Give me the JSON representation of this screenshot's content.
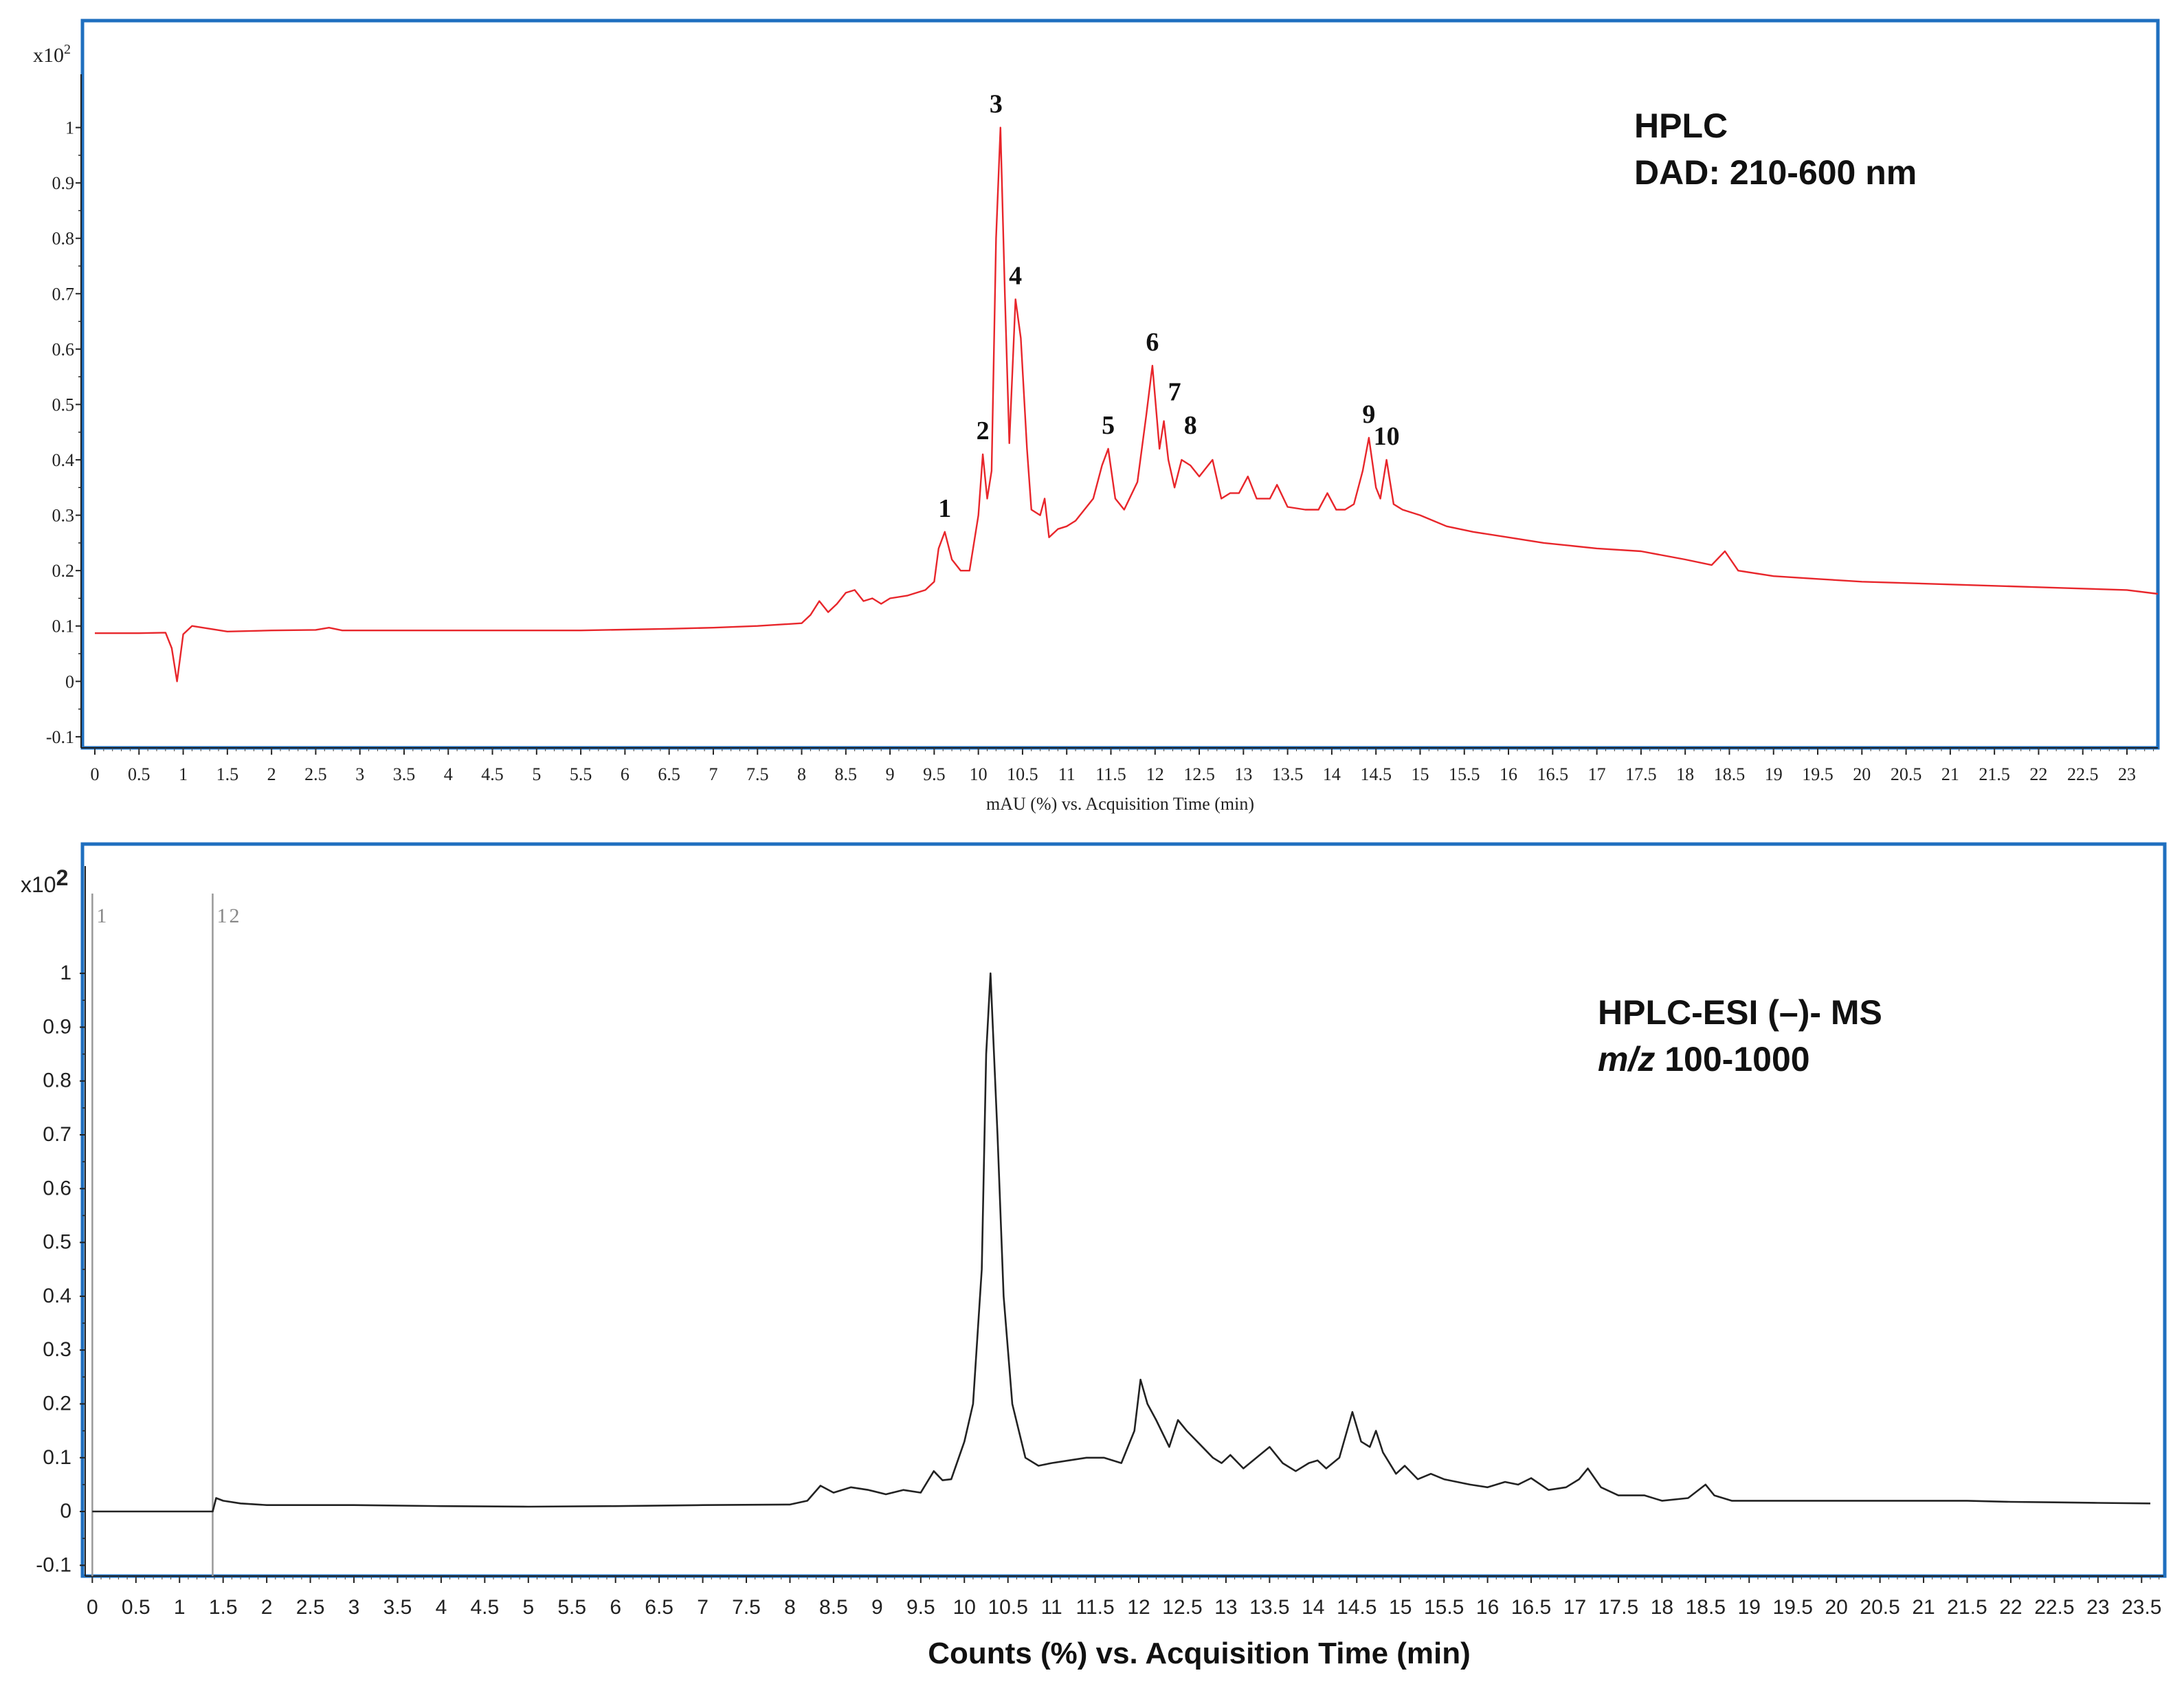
{
  "chart_data": [
    {
      "type": "line",
      "scale_label_prefix": "x10",
      "scale_label_exponent": "2",
      "xlim": [
        0,
        23.35
      ],
      "ylim": [
        -0.12,
        1.1
      ],
      "xticks": [
        0,
        0.5,
        1,
        1.5,
        2,
        2.5,
        3,
        3.5,
        4,
        4.5,
        5,
        5.5,
        6,
        6.5,
        7,
        7.5,
        8,
        8.5,
        9,
        9.5,
        10,
        10.5,
        11,
        11.5,
        12,
        12.5,
        13,
        13.5,
        14,
        14.5,
        15,
        15.5,
        16,
        16.5,
        17,
        17.5,
        18,
        18.5,
        19,
        19.5,
        20,
        20.5,
        21,
        21.5,
        22,
        22.5,
        23
      ],
      "yticks": [
        -0.1,
        0,
        0.1,
        0.2,
        0.3,
        0.4,
        0.5,
        0.6,
        0.7,
        0.8,
        0.9,
        1
      ],
      "xlabel": "mAU (%) vs. Acquisition Time (min)",
      "annotation_line1": "HPLC",
      "annotation_line2": "DAD: 210-600 nm",
      "line_color": "#e8262b",
      "series": [
        {
          "x": [
            0,
            0.5,
            0.8,
            0.87,
            0.93,
            1.0,
            1.1,
            1.5,
            2.0,
            2.5,
            2.65,
            2.8,
            3.5,
            4.5,
            5.5,
            6.5,
            7.0,
            7.5,
            8.0,
            8.1,
            8.2,
            8.3,
            8.4,
            8.5,
            8.6,
            8.7,
            8.8,
            8.9,
            9.0,
            9.2,
            9.4,
            9.5,
            9.55,
            9.62,
            9.7,
            9.8,
            9.9,
            10.0,
            10.05,
            10.1,
            10.15,
            10.2,
            10.25,
            10.3,
            10.35,
            10.42,
            10.48,
            10.55,
            10.6,
            10.7,
            10.75,
            10.8,
            10.9,
            11.0,
            11.1,
            11.3,
            11.4,
            11.47,
            11.55,
            11.65,
            11.8,
            11.9,
            11.97,
            12.05,
            12.1,
            12.15,
            12.22,
            12.3,
            12.4,
            12.5,
            12.6,
            12.65,
            12.75,
            12.85,
            12.95,
            13.05,
            13.15,
            13.3,
            13.38,
            13.5,
            13.7,
            13.85,
            13.95,
            14.05,
            14.15,
            14.25,
            14.35,
            14.42,
            14.5,
            14.55,
            14.62,
            14.7,
            14.8,
            15.0,
            15.3,
            15.6,
            16.0,
            16.4,
            17.0,
            17.5,
            18.0,
            18.3,
            18.45,
            18.6,
            19.0,
            19.5,
            20.0,
            21.0,
            22.0,
            23.0,
            23.35
          ],
          "y": [
            0.087,
            0.087,
            0.088,
            0.06,
            0.0,
            0.085,
            0.1,
            0.09,
            0.092,
            0.093,
            0.097,
            0.092,
            0.092,
            0.092,
            0.092,
            0.095,
            0.097,
            0.1,
            0.105,
            0.12,
            0.145,
            0.125,
            0.14,
            0.16,
            0.165,
            0.145,
            0.15,
            0.14,
            0.15,
            0.155,
            0.165,
            0.18,
            0.24,
            0.27,
            0.22,
            0.2,
            0.2,
            0.3,
            0.41,
            0.33,
            0.38,
            0.8,
            1.0,
            0.7,
            0.43,
            0.69,
            0.62,
            0.42,
            0.31,
            0.3,
            0.33,
            0.26,
            0.275,
            0.28,
            0.29,
            0.33,
            0.39,
            0.42,
            0.33,
            0.31,
            0.36,
            0.48,
            0.57,
            0.42,
            0.47,
            0.4,
            0.35,
            0.4,
            0.39,
            0.37,
            0.39,
            0.4,
            0.33,
            0.34,
            0.34,
            0.37,
            0.33,
            0.33,
            0.355,
            0.315,
            0.31,
            0.31,
            0.34,
            0.31,
            0.31,
            0.32,
            0.38,
            0.44,
            0.35,
            0.33,
            0.4,
            0.32,
            0.31,
            0.3,
            0.28,
            0.27,
            0.26,
            0.25,
            0.24,
            0.235,
            0.22,
            0.21,
            0.235,
            0.2,
            0.19,
            0.185,
            0.18,
            0.175,
            0.17,
            0.165,
            0.158
          ]
        }
      ],
      "peak_labels": [
        {
          "label": "1",
          "x": 9.62,
          "y": 0.27
        },
        {
          "label": "2",
          "x": 10.05,
          "y": 0.41
        },
        {
          "label": "3",
          "x": 10.2,
          "y": 1.0
        },
        {
          "label": "4",
          "x": 10.42,
          "y": 0.69
        },
        {
          "label": "5",
          "x": 11.47,
          "y": 0.42
        },
        {
          "label": "6",
          "x": 11.97,
          "y": 0.57
        },
        {
          "label": "7",
          "x": 12.22,
          "y": 0.48
        },
        {
          "label": "8",
          "x": 12.4,
          "y": 0.42
        },
        {
          "label": "9",
          "x": 14.42,
          "y": 0.44
        },
        {
          "label": "10",
          "x": 14.62,
          "y": 0.4
        }
      ]
    },
    {
      "type": "line",
      "scale_label_prefix": "x10",
      "scale_label_exponent": "2",
      "xlim": [
        -0.05,
        23.75
      ],
      "ylim": [
        -0.12,
        1.11
      ],
      "xticks": [
        0,
        0.5,
        1,
        1.5,
        2,
        2.5,
        3,
        3.5,
        4,
        4.5,
        5,
        5.5,
        6,
        6.5,
        7,
        7.5,
        8,
        8.5,
        9,
        9.5,
        10,
        10.5,
        11,
        11.5,
        12,
        12.5,
        13,
        13.5,
        14,
        14.5,
        15,
        15.5,
        16,
        16.5,
        17,
        17.5,
        18,
        18.5,
        19,
        19.5,
        20,
        20.5,
        21,
        21.5,
        22,
        22.5,
        23,
        23.5
      ],
      "yticks": [
        -0.1,
        0,
        0.1,
        0.2,
        0.3,
        0.4,
        0.5,
        0.6,
        0.7,
        0.8,
        0.9,
        1
      ],
      "xlabel": "Counts (%) vs. Acquisition Time (min)",
      "annotation_line1": "HPLC-ESI (–)- MS",
      "annotation_line2_italic": "m/z",
      "annotation_line2_rest": " 100-1000",
      "line_color": "#222222",
      "markers": [
        {
          "label": "1",
          "x": 0.0
        },
        {
          "label": "1",
          "x": 1.38
        },
        {
          "label": "2",
          "x": 1.38
        }
      ],
      "series": [
        {
          "x": [
            0,
            0.5,
            1.0,
            1.38,
            1.42,
            1.5,
            1.7,
            2.0,
            3.0,
            4.0,
            5.0,
            6.0,
            7.0,
            8.0,
            8.2,
            8.35,
            8.5,
            8.7,
            8.9,
            9.1,
            9.3,
            9.5,
            9.65,
            9.75,
            9.85,
            10.0,
            10.1,
            10.2,
            10.25,
            10.3,
            10.38,
            10.45,
            10.55,
            10.7,
            10.85,
            11.0,
            11.2,
            11.4,
            11.6,
            11.8,
            11.95,
            12.02,
            12.1,
            12.2,
            12.35,
            12.45,
            12.55,
            12.7,
            12.85,
            12.95,
            13.05,
            13.2,
            13.35,
            13.5,
            13.65,
            13.8,
            13.95,
            14.05,
            14.15,
            14.3,
            14.45,
            14.55,
            14.65,
            14.72,
            14.8,
            14.95,
            15.05,
            15.2,
            15.35,
            15.5,
            15.65,
            15.8,
            16.0,
            16.2,
            16.35,
            16.5,
            16.7,
            16.9,
            17.05,
            17.15,
            17.3,
            17.5,
            17.8,
            18.0,
            18.3,
            18.5,
            18.6,
            18.8,
            19.0,
            19.5,
            20.0,
            20.5,
            21.0,
            21.5,
            22.0,
            22.5,
            23.0,
            23.6
          ],
          "y": [
            0,
            0,
            0,
            0,
            0.025,
            0.02,
            0.015,
            0.012,
            0.012,
            0.01,
            0.009,
            0.01,
            0.012,
            0.013,
            0.02,
            0.048,
            0.035,
            0.045,
            0.04,
            0.032,
            0.04,
            0.035,
            0.075,
            0.058,
            0.06,
            0.13,
            0.2,
            0.45,
            0.85,
            1.0,
            0.7,
            0.4,
            0.2,
            0.1,
            0.085,
            0.09,
            0.095,
            0.1,
            0.1,
            0.09,
            0.15,
            0.245,
            0.2,
            0.17,
            0.12,
            0.17,
            0.15,
            0.125,
            0.1,
            0.09,
            0.105,
            0.08,
            0.1,
            0.12,
            0.09,
            0.075,
            0.09,
            0.095,
            0.08,
            0.1,
            0.185,
            0.13,
            0.12,
            0.15,
            0.11,
            0.07,
            0.085,
            0.06,
            0.07,
            0.06,
            0.055,
            0.05,
            0.045,
            0.055,
            0.05,
            0.062,
            0.04,
            0.045,
            0.06,
            0.08,
            0.045,
            0.03,
            0.03,
            0.02,
            0.025,
            0.05,
            0.03,
            0.02,
            0.02,
            0.02,
            0.02,
            0.02,
            0.02,
            0.02,
            0.018,
            0.017,
            0.016,
            0.015
          ]
        }
      ]
    }
  ]
}
